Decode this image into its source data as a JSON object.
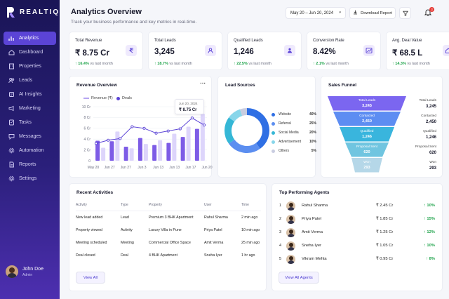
{
  "app": {
    "brand": "REALTIQ"
  },
  "sidebar": {
    "items": [
      {
        "label": "Analytics",
        "icon": "analytics-icon"
      },
      {
        "label": "Dashboard",
        "icon": "home-icon"
      },
      {
        "label": "Properties",
        "icon": "building-icon"
      },
      {
        "label": "Leads",
        "icon": "users-icon"
      },
      {
        "label": "AI Insights",
        "icon": "ai-icon"
      },
      {
        "label": "Marketing",
        "icon": "megaphone-icon"
      },
      {
        "label": "Tasks",
        "icon": "checklist-icon"
      },
      {
        "label": "Messages",
        "icon": "chat-icon"
      },
      {
        "label": "Automation",
        "icon": "gear-icon"
      },
      {
        "label": "Reports",
        "icon": "report-icon"
      },
      {
        "label": "Settings",
        "icon": "settings-icon"
      }
    ],
    "active_index": 0,
    "user": {
      "name": "John Doe",
      "role": "Admin"
    }
  },
  "header": {
    "title": "Analytics Overview",
    "subtitle": "Track your business performance and key metrics in real-time.",
    "date_range": "May 20 – Jun 20, 2024",
    "download_label": "Download Report",
    "notification_count": "3"
  },
  "kpis": [
    {
      "label": "Total Revenue",
      "value": "₹ 8.75 Cr",
      "delta": "↑ 16.4%",
      "note": "vs last month",
      "icon": "rupee-icon"
    },
    {
      "label": "Total Leads",
      "value": "3,245",
      "delta": "↑ 18.7%",
      "note": "vs last month",
      "icon": "user-icon"
    },
    {
      "label": "Qualified Leads",
      "value": "1,246",
      "delta": "↑ 22.5%",
      "note": "vs last month",
      "icon": "user-check-icon"
    },
    {
      "label": "Conversion Rate",
      "value": "8.42%",
      "delta": "↑ 2.1%",
      "note": "vs last month",
      "icon": "trend-icon"
    },
    {
      "label": "Avg. Deal Value",
      "value": "₹ 68.5 L",
      "delta": "↑ 14.3%",
      "note": "vs last month",
      "icon": "home-icon"
    }
  ],
  "revenue": {
    "title": "Revenue Overview",
    "tooltip": {
      "date": "Jun 20, 2024",
      "value": "₹ 8.75 Cr"
    }
  },
  "chart_data": {
    "type": "bar",
    "title": "Revenue Overview",
    "x_ticks": [
      "May 20",
      "Jun 27",
      "Jun 27",
      "Jun 3",
      "Jun 13",
      "Jun 13",
      "Jun 17",
      "Jun 20"
    ],
    "ylabel_ticks": [
      "0",
      "2 Cr",
      "4 Cr",
      "6 Cr",
      "8 Cr",
      "10 Cr"
    ],
    "ylim": [
      0,
      10
    ],
    "series": [
      {
        "name": "Revenue (₹)",
        "type": "bar",
        "color": "#7d5ce6",
        "values": [
          3.7,
          2.4,
          3.6,
          5.4,
          2.6,
          2.3,
          4.2,
          3.1,
          2.9,
          3.8,
          3.3,
          5.0,
          4.4,
          6.3,
          5.9,
          8.7
        ]
      },
      {
        "name": "Deals",
        "type": "line",
        "color": "#5b44d6",
        "values": [
          3.2,
          3.8,
          4.1,
          6.3,
          6.0,
          5.1,
          5.5,
          5.9,
          7.9,
          6.6
        ]
      }
    ],
    "grid": true,
    "legend": "top-left"
  },
  "lead_sources": {
    "title": "Lead Sources",
    "items": [
      {
        "name": "Website",
        "pct": "40%",
        "value": 40,
        "color": "#2f6fe4"
      },
      {
        "name": "Referral",
        "pct": "25%",
        "value": 25,
        "color": "#5b8ef0"
      },
      {
        "name": "Social Media",
        "pct": "20%",
        "value": 20,
        "color": "#35b7d6"
      },
      {
        "name": "Advertisement",
        "pct": "10%",
        "value": 10,
        "color": "#88d6ea"
      },
      {
        "name": "Others",
        "pct": "5%",
        "value": 5,
        "color": "#c9cde0"
      }
    ]
  },
  "funnel": {
    "title": "Sales Funnel",
    "stages": [
      {
        "label": "Total Leads",
        "value": "3,245",
        "color": "#7b66f0"
      },
      {
        "label": "Contacted",
        "value": "2,450",
        "color": "#5d8df2"
      },
      {
        "label": "Qualified",
        "value": "1,246",
        "color": "#39b5dd"
      },
      {
        "label": "Proposal Sent",
        "value": "620",
        "color": "#70c5e0"
      },
      {
        "label": "Won",
        "value": "293",
        "color": "#b5d7e8"
      }
    ]
  },
  "activities": {
    "title": "Recent Activities",
    "columns": [
      "Activity",
      "Type",
      "Property",
      "User",
      "Time"
    ],
    "rows": [
      [
        "New lead added",
        "Lead",
        "Premium 3 BHK Apartment",
        "Rahul Sharma",
        "2 min ago"
      ],
      [
        "Property viewed",
        "Activity",
        "Luxury Villa in Pune",
        "Priya Patel",
        "10 min ago"
      ],
      [
        "Meeting scheduled",
        "Meeting",
        "Commercial Office Space",
        "Amit Verma",
        "25 min ago"
      ],
      [
        "Deal closed",
        "Deal",
        "4 BHK Apartment",
        "Sneha Iyer",
        "1 hr ago"
      ]
    ],
    "button": "View All"
  },
  "agents": {
    "title": "Top Performing Agents",
    "rows": [
      {
        "rank": "1",
        "name": "Rahul Sharma",
        "amount": "₹ 2.45 Cr",
        "delta": "↑ 10%"
      },
      {
        "rank": "2",
        "name": "Priya Patel",
        "amount": "₹ 1.85 Cr",
        "delta": "↑ 15%"
      },
      {
        "rank": "3",
        "name": "Amit Verma",
        "amount": "₹ 1.25 Cr",
        "delta": "↑ 12%"
      },
      {
        "rank": "4",
        "name": "Sneha Iyer",
        "amount": "₹ 1.05 Cr",
        "delta": "↑ 10%"
      },
      {
        "rank": "5",
        "name": "Vikram Mehta",
        "amount": "₹ 0.95 Cr",
        "delta": "↑ 8%"
      }
    ],
    "button": "View All Agents"
  }
}
